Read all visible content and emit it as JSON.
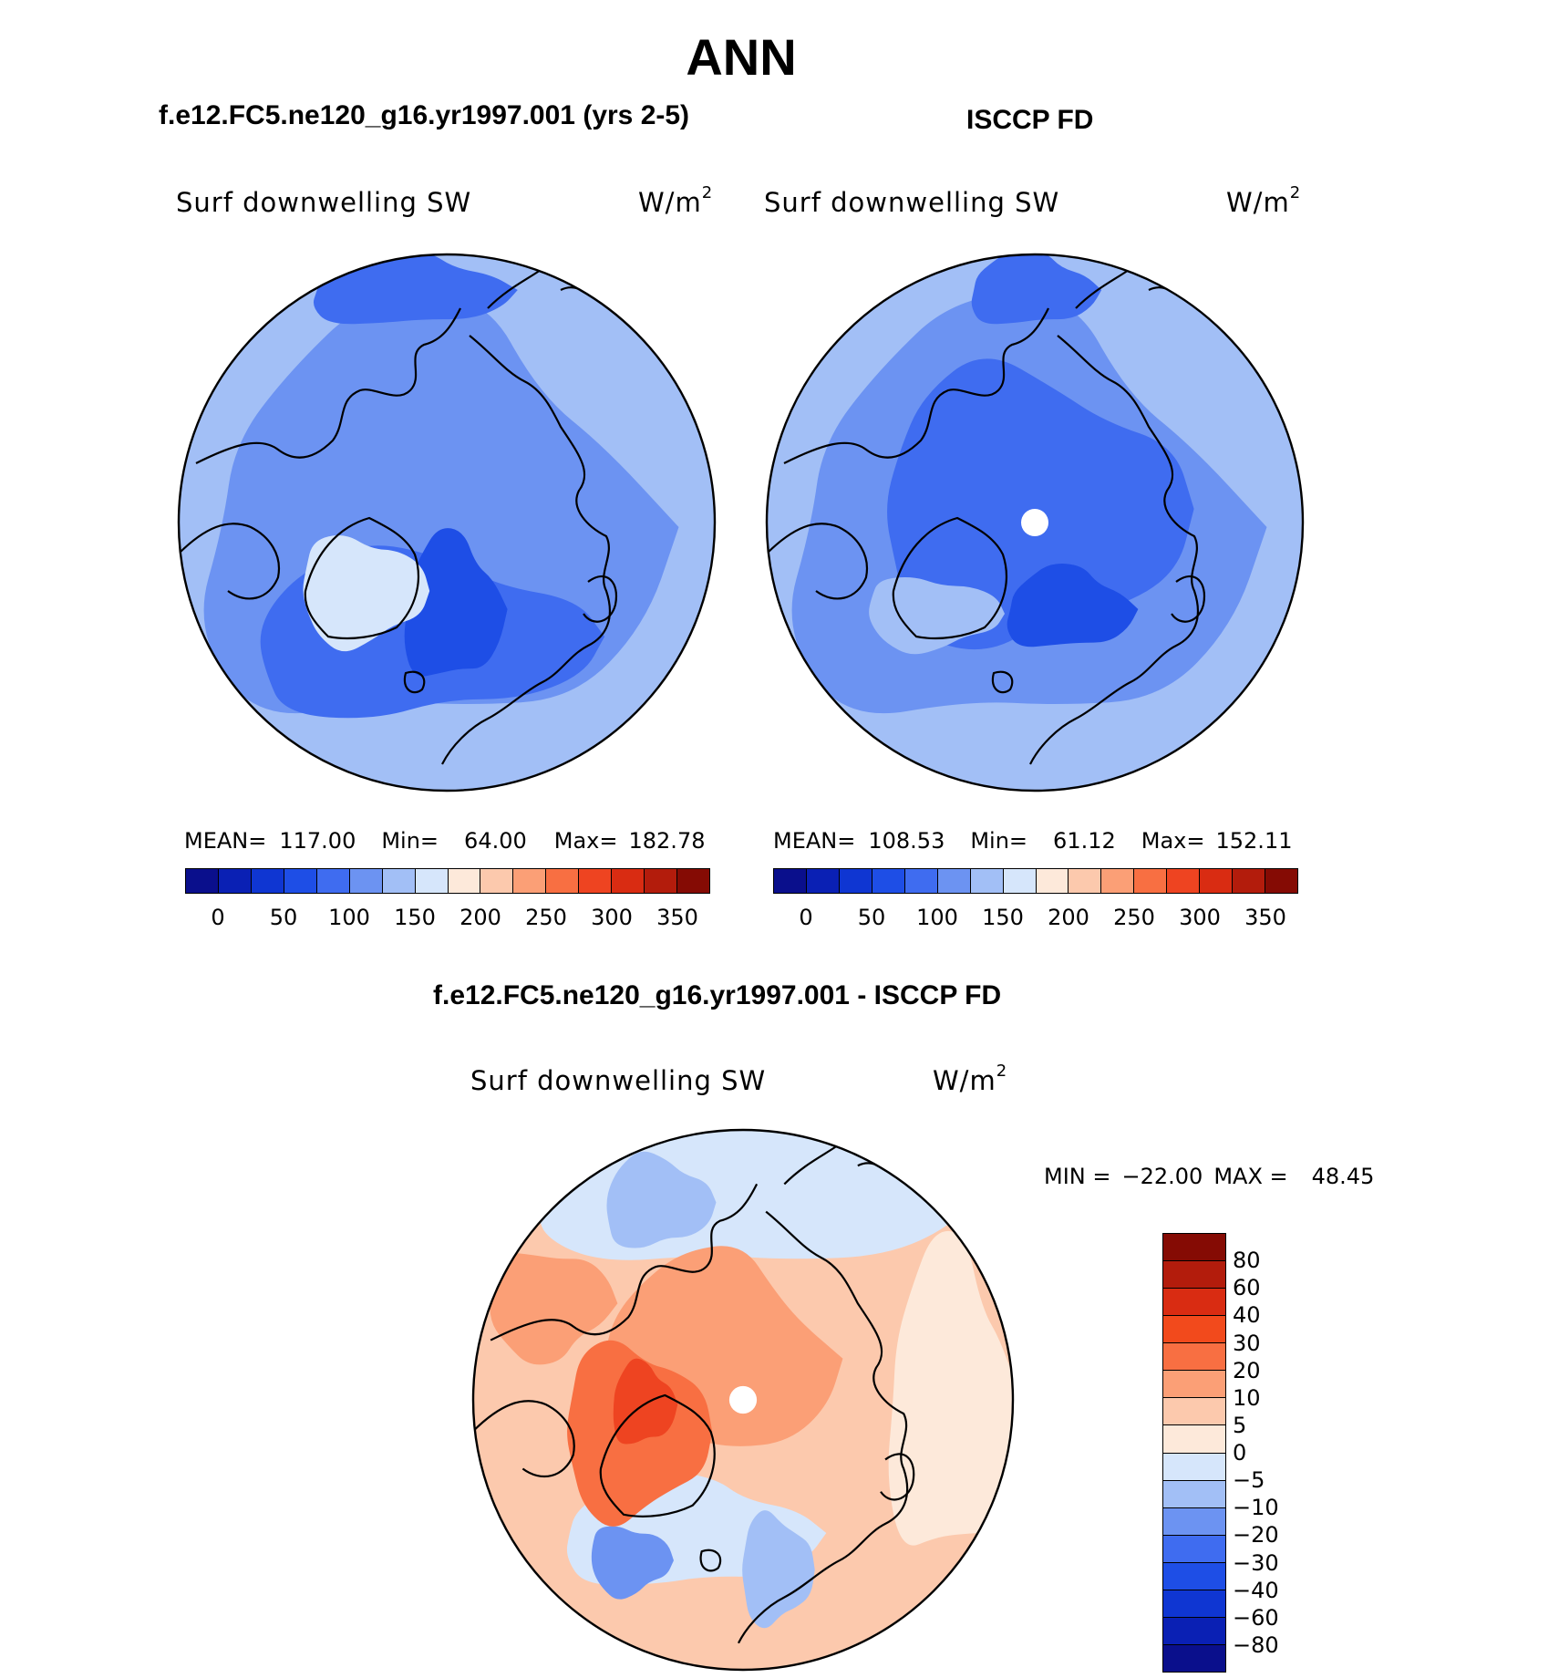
{
  "main_title": "ANN",
  "panels": [
    {
      "case_title": "f.e12.FC5.ne120_g16.yr1997.001 (yrs 2-5)",
      "variable": "Surf  downwelling  SW",
      "units_base": "W/m",
      "units_exp": "2",
      "stats": {
        "mean_label": "MEAN=",
        "mean_value": "117.00",
        "min_label": "Min=",
        "min_value": "64.00",
        "max_label": "Max=",
        "max_value": "182.78"
      },
      "colorbar_ticks": [
        "0",
        "50",
        "100",
        "150",
        "200",
        "250",
        "300",
        "350"
      ],
      "colorbar_colors": [
        "#0a0f8c",
        "#0a20b4",
        "#0f36d2",
        "#1e4ee6",
        "#3f6cf0",
        "#6c93f2",
        "#a2bff6",
        "#d6e6fb",
        "#fde9da",
        "#fcc9ad",
        "#fb9f76",
        "#f86f42",
        "#ee4421",
        "#d92c12",
        "#b31c0c",
        "#850b04"
      ]
    },
    {
      "case_title": "ISCCP FD",
      "variable": "Surf  downwelling  SW",
      "units_base": "W/m",
      "units_exp": "2",
      "stats": {
        "mean_label": "MEAN=",
        "mean_value": "108.53",
        "min_label": "Min=",
        "min_value": "61.12",
        "max_label": "Max=",
        "max_value": "152.11"
      },
      "colorbar_ticks": [
        "0",
        "50",
        "100",
        "150",
        "200",
        "250",
        "300",
        "350"
      ],
      "colorbar_colors": [
        "#0a0f8c",
        "#0a20b4",
        "#0f36d2",
        "#1e4ee6",
        "#3f6cf0",
        "#6c93f2",
        "#a2bff6",
        "#d6e6fb",
        "#fde9da",
        "#fcc9ad",
        "#fb9f76",
        "#f86f42",
        "#ee4421",
        "#d92c12",
        "#b31c0c",
        "#850b04"
      ]
    }
  ],
  "difference": {
    "case_title": "f.e12.FC5.ne120_g16.yr1997.001 - ISCCP FD",
    "variable": "Surf  downwelling  SW",
    "units_base": "W/m",
    "units_exp": "2",
    "stats": {
      "min_label": "MIN =",
      "min_value": "−22.00",
      "max_label": "MAX =",
      "max_value": "48.45"
    },
    "colorbar_ticks": [
      "80",
      "60",
      "40",
      "30",
      "20",
      "10",
      "5",
      "0",
      "−5",
      "−10",
      "−20",
      "−30",
      "−40",
      "−60",
      "−80"
    ],
    "colorbar_colors": [
      "#850b04",
      "#b31c0c",
      "#d92c12",
      "#f24a1c",
      "#f86f42",
      "#fb9f76",
      "#fcc9ad",
      "#fde9da",
      "#d6e6fb",
      "#a2bff6",
      "#6c93f2",
      "#3f6cf0",
      "#1e4ee6",
      "#0f36d2",
      "#0a20b4",
      "#0a0f8c"
    ]
  },
  "map_colors": {
    "field_light": "#a2bff6",
    "field_mid": "#6c93f2",
    "field_dark": "#3f6cf0",
    "field_darkest": "#1e4ee6",
    "pale": "#d6e6fb",
    "diff_pos_1": "#fde9da",
    "diff_pos_2": "#fcc9ad",
    "diff_pos_3": "#fb9f76",
    "diff_pos_4": "#f86f42",
    "diff_pos_5": "#ee4421",
    "diff_neg_1": "#d6e6fb",
    "diff_neg_2": "#a2bff6",
    "diff_neg_3": "#6c93f2"
  }
}
